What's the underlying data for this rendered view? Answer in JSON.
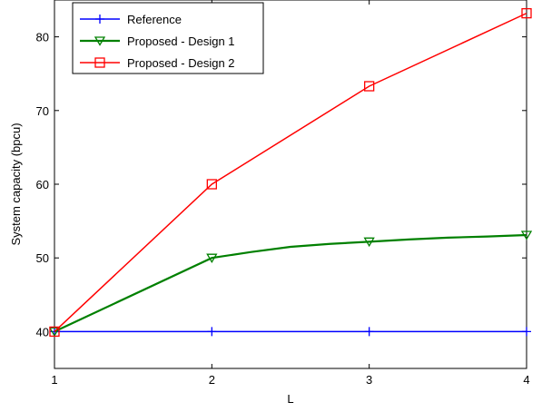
{
  "chart_data": {
    "type": "line",
    "x": [
      1,
      2,
      3,
      4
    ],
    "xlabel": "L",
    "ylabel": "System capacity (bpcu)",
    "xlim": [
      1,
      4
    ],
    "ylim": [
      35,
      85
    ],
    "xticks": [
      1,
      2,
      3,
      4
    ],
    "yticks": [
      40,
      50,
      60,
      70,
      80
    ],
    "grid": false,
    "legend_position": "top-left",
    "series": [
      {
        "name": "Reference",
        "values": [
          40,
          40,
          40,
          40
        ],
        "color": "#0000ff",
        "marker": "plus"
      },
      {
        "name": "Proposed - Design 1",
        "values": [
          40,
          50,
          52.2,
          53.1
        ],
        "color": "#008000",
        "marker": "triangle-down",
        "curve": [
          [
            1,
            40
          ],
          [
            2,
            50
          ],
          [
            2.25,
            50.8
          ],
          [
            2.5,
            51.5
          ],
          [
            2.75,
            51.9
          ],
          [
            3,
            52.2
          ],
          [
            3.25,
            52.5
          ],
          [
            3.5,
            52.75
          ],
          [
            3.75,
            52.9
          ],
          [
            4,
            53.1
          ]
        ]
      },
      {
        "name": "Proposed - Design 2",
        "values": [
          40,
          60,
          73.3,
          83.2
        ],
        "color": "#ff0000",
        "marker": "square"
      }
    ]
  }
}
